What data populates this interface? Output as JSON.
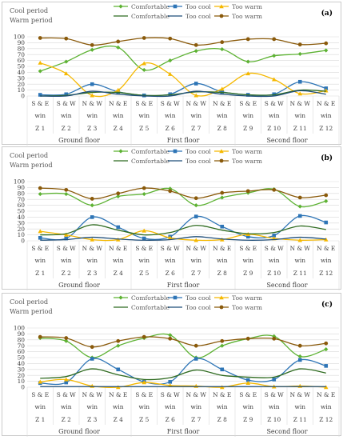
{
  "colors": {
    "cool_comfortable": "#5db233",
    "cool_too_cool": "#2e75b6",
    "cool_too_warm": "#f5b800",
    "warm_comfortable": "#2f6b20",
    "warm_too_cool": "#1f4e79",
    "warm_too_warm": "#8a5a0b",
    "grid": "#d9d9d9",
    "frame": "#bfbfbf"
  },
  "chart_data": [
    {
      "type": "line",
      "panel_label": "(a)",
      "period_labels": [
        "Cool period",
        "Warm period"
      ],
      "legend": [
        {
          "period": "cool",
          "items": [
            "Comfortable",
            "Too cool",
            "Too warm"
          ]
        },
        {
          "period": "warm",
          "items": [
            "Comfortable",
            "Too cool",
            "Too warm"
          ]
        }
      ],
      "ylim": [
        0,
        100
      ],
      "yticks": [
        0,
        10,
        20,
        30,
        40,
        50,
        60,
        70,
        80,
        90,
        100
      ],
      "categories": [
        "S & E win",
        "S & W win",
        "N & W win",
        "N & E win",
        "S & E win",
        "S & W win",
        "N & W win",
        "N & E win",
        "S & E win",
        "S & W win",
        "N & W win",
        "N & E win"
      ],
      "zones": [
        "Z 1",
        "Z 2",
        "Z 3",
        "Z 4",
        "Z 5",
        "Z 6",
        "Z 7",
        "Z 8",
        "Z 9",
        "Z 10",
        "Z 11",
        "Z 12"
      ],
      "floors": [
        "Ground floor",
        "First floor",
        "Second floor"
      ],
      "series": [
        {
          "name": "Comfortable",
          "period": "cool",
          "values": [
            42,
            58,
            78,
            82,
            44,
            60,
            76,
            79,
            58,
            68,
            71,
            77
          ]
        },
        {
          "name": "Too cool",
          "period": "cool",
          "values": [
            2,
            3,
            20,
            7,
            1,
            3,
            21,
            7,
            2,
            3,
            24,
            13
          ]
        },
        {
          "name": "Too warm",
          "period": "cool",
          "values": [
            56,
            38,
            1,
            10,
            55,
            37,
            1,
            12,
            38,
            28,
            4,
            9
          ]
        },
        {
          "name": "Comfortable",
          "period": "warm",
          "values": [
            0,
            1,
            6,
            6,
            1,
            2,
            7,
            6,
            2,
            2,
            10,
            8
          ]
        },
        {
          "name": "Too cool",
          "period": "warm",
          "values": [
            0,
            0,
            8,
            3,
            0,
            0,
            8,
            3,
            0,
            0,
            9,
            3
          ]
        },
        {
          "name": "Too warm",
          "period": "warm",
          "values": [
            98,
            97,
            86,
            92,
            98,
            97,
            86,
            91,
            96,
            96,
            87,
            89
          ]
        }
      ]
    },
    {
      "type": "line",
      "panel_label": "(b)",
      "period_labels": [
        "Cool period",
        "Warm period"
      ],
      "legend": [
        {
          "period": "cool",
          "items": [
            "Comfortable",
            "Too cool",
            "Too warm"
          ]
        },
        {
          "period": "warm",
          "items": [
            "Comfortable",
            "Too cool",
            "Too warm"
          ]
        }
      ],
      "ylim": [
        0,
        100
      ],
      "yticks": [
        0,
        10,
        20,
        30,
        40,
        50,
        60,
        70,
        80,
        90,
        100
      ],
      "categories": [
        "S & E win",
        "S & W win",
        "N & W win",
        "N & E win",
        "S & E win",
        "S & W win",
        "N & W win",
        "N & E win",
        "S & E win",
        "S & W win",
        "N & W win",
        "N & E win"
      ],
      "zones": [
        "Z 1",
        "Z 2",
        "Z 3",
        "Z 4",
        "Z 5",
        "Z 6",
        "Z 7",
        "Z 8",
        "Z 9",
        "Z 10",
        "Z 11",
        "Z 12"
      ],
      "floors": [
        "Ground floor",
        "First floor",
        "Second floor"
      ],
      "series": [
        {
          "name": "Comfortable",
          "period": "cool",
          "values": [
            79,
            79,
            60,
            75,
            79,
            88,
            60,
            73,
            81,
            87,
            58,
            67
          ]
        },
        {
          "name": "Too cool",
          "period": "cool",
          "values": [
            5,
            4,
            40,
            23,
            4,
            7,
            41,
            24,
            7,
            9,
            42,
            31
          ]
        },
        {
          "name": "Too warm",
          "period": "cool",
          "values": [
            16,
            10,
            2,
            2,
            17,
            5,
            1,
            2,
            11,
            4,
            1,
            2
          ]
        },
        {
          "name": "Comfortable",
          "period": "warm",
          "values": [
            10,
            12,
            27,
            18,
            10,
            14,
            26,
            18,
            12,
            14,
            25,
            19
          ]
        },
        {
          "name": "Too cool",
          "period": "warm",
          "values": [
            1,
            2,
            6,
            3,
            1,
            2,
            7,
            3,
            1,
            2,
            6,
            3
          ]
        },
        {
          "name": "Too warm",
          "period": "warm",
          "values": [
            89,
            86,
            71,
            80,
            89,
            84,
            72,
            81,
            84,
            86,
            73,
            77
          ]
        }
      ]
    },
    {
      "type": "line",
      "panel_label": "(c)",
      "period_labels": [
        "Cool period",
        "Warm period"
      ],
      "legend": [
        {
          "period": "cool",
          "items": [
            "Comfortable",
            "Too cool",
            "Too warm"
          ]
        },
        {
          "period": "warm",
          "items": [
            "Comfortable",
            "Too cool",
            "Too warm"
          ]
        }
      ],
      "ylim": [
        0,
        100
      ],
      "yticks": [
        0,
        10,
        20,
        30,
        40,
        50,
        60,
        70,
        80,
        90,
        100
      ],
      "categories": [
        "S & E win",
        "S & W win",
        "N & W win",
        "N & E win",
        "S & E win",
        "S & W win",
        "N & W win",
        "N & E win",
        "S & E win",
        "S & W win",
        "N & W win",
        "N & E win"
      ],
      "zones": [
        "Z 1",
        "Z 2",
        "Z 3",
        "Z 4",
        "Z 5",
        "Z 6",
        "Z 7",
        "Z 8",
        "Z 9",
        "Z 10",
        "Z 11",
        "Z 12"
      ],
      "floors": [
        "Ground floor",
        "First floor",
        "Second floor"
      ],
      "series": [
        {
          "name": "Comfortable",
          "period": "cool",
          "values": [
            83,
            78,
            50,
            70,
            83,
            88,
            50,
            70,
            82,
            86,
            52,
            64
          ]
        },
        {
          "name": "Too cool",
          "period": "cool",
          "values": [
            7,
            8,
            48,
            30,
            9,
            9,
            48,
            30,
            12,
            13,
            46,
            36
          ]
        },
        {
          "name": "Too warm",
          "period": "cool",
          "values": [
            9,
            13,
            2,
            0,
            8,
            3,
            2,
            0,
            7,
            1,
            2,
            0
          ]
        },
        {
          "name": "Comfortable",
          "period": "warm",
          "values": [
            15,
            18,
            31,
            21,
            13,
            16,
            29,
            20,
            17,
            17,
            31,
            24
          ]
        },
        {
          "name": "Too cool",
          "period": "warm",
          "values": [
            1,
            1,
            1,
            1,
            1,
            1,
            1,
            1,
            1,
            1,
            1,
            1
          ]
        },
        {
          "name": "Too warm",
          "period": "warm",
          "values": [
            85,
            83,
            68,
            78,
            85,
            82,
            70,
            78,
            82,
            82,
            70,
            74
          ]
        }
      ]
    }
  ]
}
